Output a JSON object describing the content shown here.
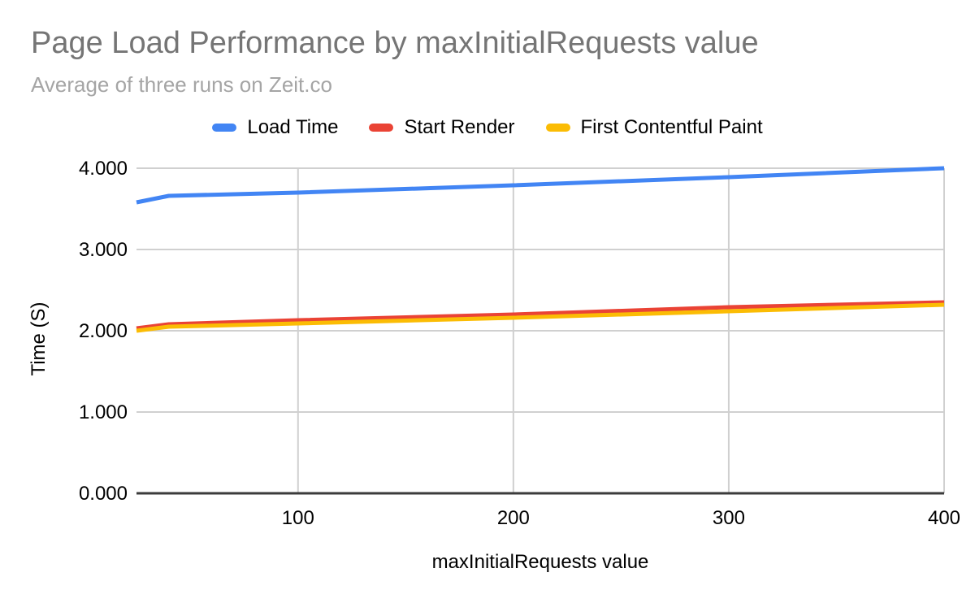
{
  "header": {
    "title": "Page Load Performance by maxInitialRequests value",
    "subtitle": "Average of three runs on Zeit.co"
  },
  "chart_data": {
    "type": "line",
    "title": "Page Load Performance by maxInitialRequests value",
    "subtitle": "Average of three runs on Zeit.co",
    "xlabel": "maxInitialRequests value",
    "ylabel": "Time (S)",
    "x": [
      25,
      40,
      100,
      200,
      300,
      400
    ],
    "series": [
      {
        "name": "Load Time",
        "color": "#4285f4",
        "values": [
          3.58,
          3.66,
          3.7,
          3.79,
          3.89,
          4.0
        ]
      },
      {
        "name": "Start Render",
        "color": "#ea4335",
        "values": [
          2.03,
          2.08,
          2.13,
          2.2,
          2.29,
          2.35
        ]
      },
      {
        "name": "First Contentful Paint",
        "color": "#fbbc04",
        "values": [
          2.0,
          2.05,
          2.09,
          2.16,
          2.24,
          2.32
        ]
      }
    ],
    "xlim": [
      25,
      400
    ],
    "ylim": [
      0,
      4
    ],
    "x_ticks": {
      "values": [
        100,
        200,
        300,
        400
      ],
      "labels": [
        "100",
        "200",
        "300",
        "400"
      ]
    },
    "y_ticks": {
      "values": [
        0,
        1,
        2,
        3,
        4
      ],
      "labels": [
        "0.000",
        "1.000",
        "2.000",
        "3.000",
        "4.000"
      ]
    },
    "grid": true,
    "legend_position": "top",
    "colors": {
      "gridline": "#d0d0d0",
      "axis_line": "#3b3b3b",
      "title_text": "#757575",
      "subtitle_text": "#a5a5a5",
      "tick_text": "#000000",
      "background": "#ffffff"
    }
  }
}
